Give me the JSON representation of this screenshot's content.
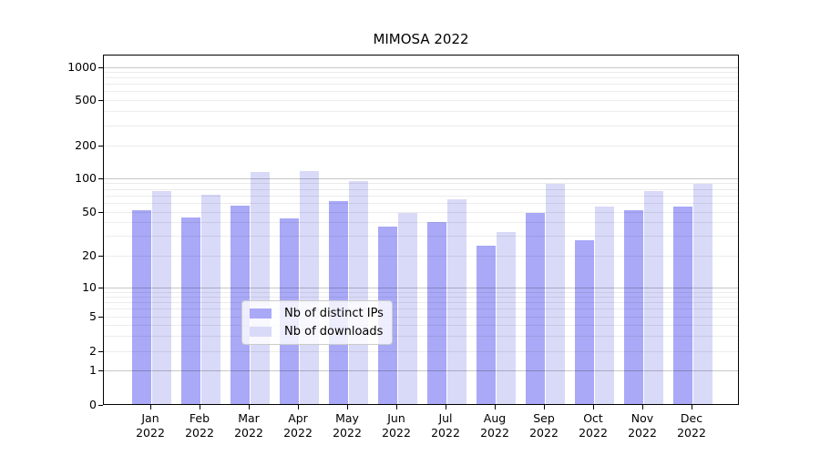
{
  "figure": {
    "title": "MIMOSA 2022"
  },
  "legend": {
    "items": [
      {
        "label": "Nb of distinct IPs",
        "color": "#a9a9f7"
      },
      {
        "label": "Nb of downloads",
        "color": "#d9d9f8"
      }
    ]
  },
  "chart_data": {
    "type": "bar",
    "title": "MIMOSA 2022",
    "categories": [
      "Jan 2022",
      "Feb 2022",
      "Mar 2022",
      "Apr 2022",
      "May 2022",
      "Jun 2022",
      "Jul 2022",
      "Aug 2022",
      "Sep 2022",
      "Oct 2022",
      "Nov 2022",
      "Dec 2022"
    ],
    "x_tick_lines": [
      [
        "Jan",
        "2022"
      ],
      [
        "Feb",
        "2022"
      ],
      [
        "Mar",
        "2022"
      ],
      [
        "Apr",
        "2022"
      ],
      [
        "May",
        "2022"
      ],
      [
        "Jun",
        "2022"
      ],
      [
        "Jul",
        "2022"
      ],
      [
        "Aug",
        "2022"
      ],
      [
        "Sep",
        "2022"
      ],
      [
        "Oct",
        "2022"
      ],
      [
        "Nov",
        "2022"
      ],
      [
        "Dec",
        "2022"
      ]
    ],
    "series": [
      {
        "name": "Nb of distinct IPs",
        "color": "#a9a9f7",
        "values": [
          51,
          44,
          56,
          43,
          61,
          36,
          40,
          24,
          48,
          27,
          51,
          55
        ]
      },
      {
        "name": "Nb of downloads",
        "color": "#d9d9f8",
        "values": [
          76,
          70,
          113,
          115,
          92,
          48,
          64,
          32,
          88,
          55,
          76,
          87
        ]
      }
    ],
    "y_axis": {
      "scale": "log-like with linear segment from 0 to 1",
      "tick_values": [
        0,
        1,
        2,
        5,
        10,
        20,
        50,
        100,
        200,
        500,
        1000
      ],
      "ylim": [
        0,
        1300
      ],
      "grid": {
        "horizontal": true,
        "major_at": [
          1,
          10,
          100,
          1000
        ],
        "minor": "2-9 per decade"
      }
    },
    "legend_position": "lower center inside plot",
    "xlabel": "",
    "ylabel": ""
  }
}
